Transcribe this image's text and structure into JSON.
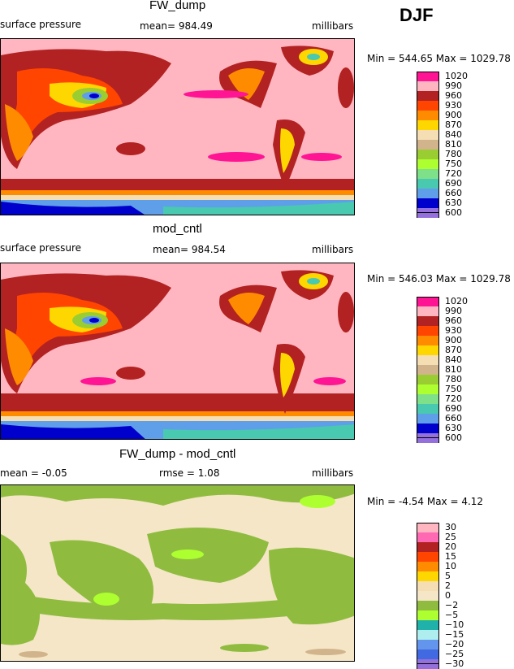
{
  "season": "DJF",
  "panels": [
    {
      "title": "FW_dump",
      "left_label": "surface pressure",
      "center_label": "mean= 984.49",
      "right_label": "millibars",
      "minmax": "Min = 544.65 Max = 1029.78"
    },
    {
      "title": "mod_cntl",
      "left_label": "surface pressure",
      "center_label": "mean= 984.54",
      "right_label": "millibars",
      "minmax": "Min = 546.03 Max = 1029.78"
    },
    {
      "title": "FW_dump - mod_cntl",
      "left_label": "mean =   -0.05",
      "center_label": "rmse =    1.08",
      "right_label": "millibars",
      "minmax": "Min =   -4.54 Max =    4.12"
    }
  ],
  "chart_data": [
    {
      "type": "heatmap",
      "title": "FW_dump",
      "variable": "surface pressure",
      "units": "millibars",
      "mean": 984.49,
      "min": 544.65,
      "max": 1029.78,
      "legend": {
        "levels": [
          "1020",
          "990",
          "960",
          "930",
          "900",
          "870",
          "840",
          "810",
          "780",
          "750",
          "720",
          "690",
          "660",
          "630",
          "600"
        ],
        "colors": [
          "#ff1493",
          "#ffb6c1",
          "#b22222",
          "#ff4500",
          "#ff8c00",
          "#ffd700",
          "#f5deb3",
          "#d2b48c",
          "#9acd32",
          "#adff2f",
          "#7fe08a",
          "#48c9b0",
          "#5f9ee8",
          "#0000cd",
          "#9370db"
        ]
      }
    },
    {
      "type": "heatmap",
      "title": "mod_cntl",
      "variable": "surface pressure",
      "units": "millibars",
      "mean": 984.54,
      "min": 546.03,
      "max": 1029.78,
      "legend": {
        "levels": [
          "1020",
          "990",
          "960",
          "930",
          "900",
          "870",
          "840",
          "810",
          "780",
          "750",
          "720",
          "690",
          "660",
          "630",
          "600"
        ],
        "colors": [
          "#ff1493",
          "#ffb6c1",
          "#b22222",
          "#ff4500",
          "#ff8c00",
          "#ffd700",
          "#f5deb3",
          "#d2b48c",
          "#9acd32",
          "#adff2f",
          "#7fe08a",
          "#48c9b0",
          "#5f9ee8",
          "#0000cd",
          "#9370db"
        ]
      }
    },
    {
      "type": "heatmap",
      "title": "FW_dump - mod_cntl",
      "units": "millibars",
      "mean": -0.05,
      "rmse": 1.08,
      "min": -4.54,
      "max": 4.12,
      "legend": {
        "levels": [
          "30",
          "25",
          "20",
          "15",
          "10",
          "5",
          "2",
          "0",
          "−2",
          "−5",
          "−10",
          "−15",
          "−20",
          "−25",
          "−30"
        ],
        "colors": [
          "#ffb6c1",
          "#ff69b4",
          "#b22222",
          "#ff4500",
          "#ff8c00",
          "#ffd700",
          "#f5deb3",
          "#f5e6c8",
          "#8fbc3f",
          "#adff2f",
          "#20b2aa",
          "#afeeee",
          "#6495ed",
          "#4169e1",
          "#9370db"
        ]
      }
    }
  ]
}
